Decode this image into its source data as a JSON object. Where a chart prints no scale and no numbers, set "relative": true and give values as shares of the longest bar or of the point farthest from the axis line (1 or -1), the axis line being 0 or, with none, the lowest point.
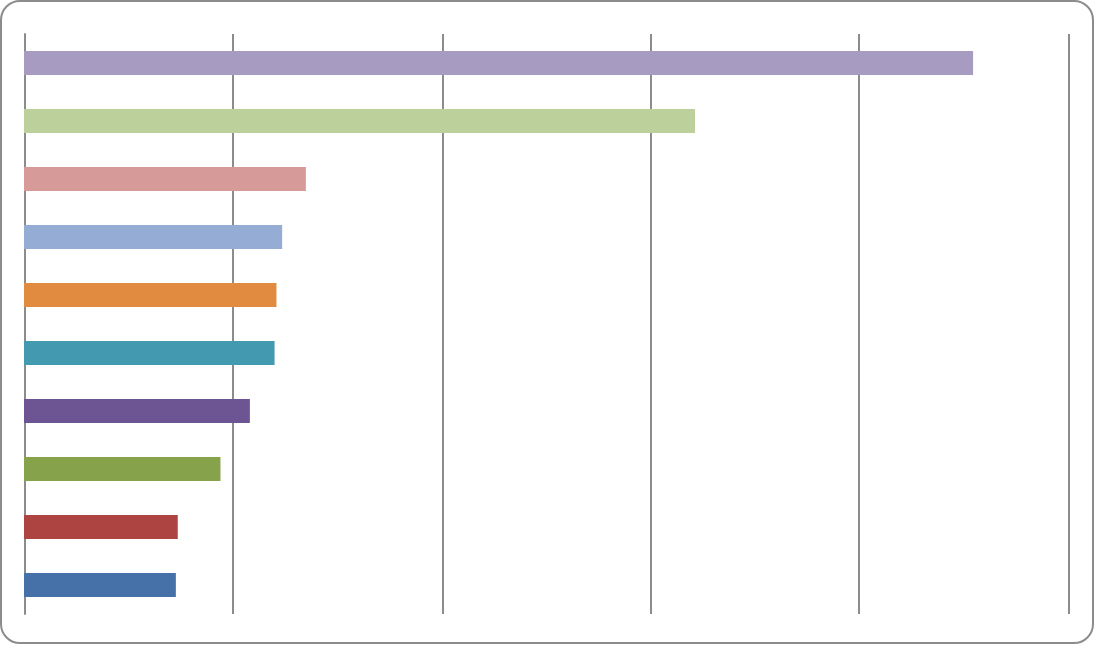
{
  "chart_data": {
    "type": "bar",
    "orientation": "horizontal",
    "relative": true,
    "grid": "x",
    "categories": [
      null,
      null,
      null,
      null,
      null,
      null,
      null,
      null,
      null,
      null
    ],
    "values": [
      1,
      0.707,
      0.297,
      0.272,
      0.266,
      0.264,
      0.238,
      0.207,
      0.162,
      0.16
    ],
    "colors": [
      "#a89bc1",
      "#bcd09b",
      "#d69a99",
      "#95acd5",
      "#e08b3f",
      "#4399b0",
      "#6c5592",
      "#86a34c",
      "#ad4441",
      "#4671a8"
    ]
  }
}
